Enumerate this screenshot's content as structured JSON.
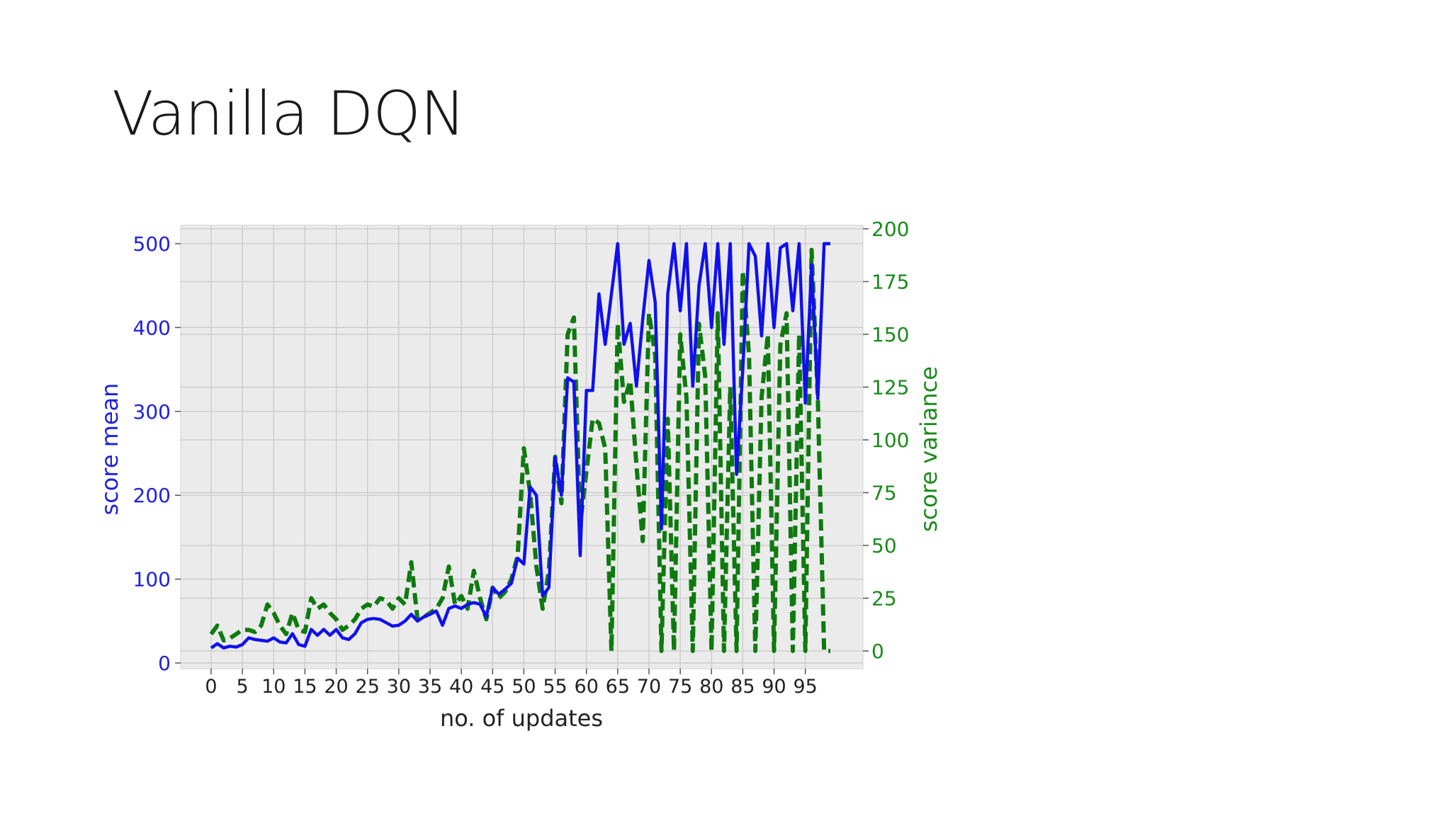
{
  "slide": {
    "title": "Vanilla DQN"
  },
  "colors": {
    "mean": "#1010ee",
    "variance": "#0e7a0e",
    "plot_bg": "#ebebeb",
    "grid": "#c8c8c8"
  },
  "chart_data": {
    "type": "line",
    "xlabel": "no. of updates",
    "ylabel": "score mean",
    "y2label": "score variance",
    "xticks": [
      0,
      5,
      10,
      15,
      20,
      25,
      30,
      35,
      40,
      45,
      50,
      55,
      60,
      65,
      70,
      75,
      80,
      85,
      90,
      95
    ],
    "ylim": [
      0,
      500
    ],
    "yticks": [
      0,
      100,
      200,
      300,
      400,
      500
    ],
    "y2lim": [
      0,
      200
    ],
    "y2ticks": [
      0,
      25,
      50,
      75,
      100,
      125,
      150,
      175,
      200
    ],
    "grid": true,
    "series": [
      {
        "name": "score mean",
        "axis": "left",
        "style": "solid",
        "color": "#1010ee",
        "x": [
          0,
          1,
          2,
          3,
          4,
          5,
          6,
          7,
          8,
          9,
          10,
          11,
          12,
          13,
          14,
          15,
          16,
          17,
          18,
          19,
          20,
          21,
          22,
          23,
          24,
          25,
          26,
          27,
          28,
          29,
          30,
          31,
          32,
          33,
          34,
          35,
          36,
          37,
          38,
          39,
          40,
          41,
          42,
          43,
          44,
          45,
          46,
          47,
          48,
          49,
          50,
          51,
          52,
          53,
          54,
          55,
          56,
          57,
          58,
          59,
          60,
          61,
          62,
          63,
          64,
          65,
          66,
          67,
          68,
          69,
          70,
          71,
          72,
          73,
          74,
          75,
          76,
          77,
          78,
          79,
          80,
          81,
          82,
          83,
          84,
          85,
          86,
          87,
          88,
          89,
          90,
          91,
          92,
          93,
          94,
          95,
          96,
          97,
          98,
          99
        ],
        "y": [
          18,
          23,
          18,
          20,
          19,
          22,
          30,
          28,
          27,
          26,
          30,
          25,
          24,
          35,
          22,
          20,
          40,
          33,
          40,
          33,
          40,
          30,
          28,
          35,
          48,
          52,
          53,
          52,
          48,
          44,
          45,
          50,
          58,
          50,
          55,
          58,
          62,
          45,
          65,
          68,
          65,
          70,
          72,
          70,
          55,
          90,
          82,
          88,
          95,
          125,
          118,
          210,
          200,
          80,
          90,
          245,
          200,
          340,
          335,
          128,
          325,
          325,
          440,
          380,
          440,
          500,
          380,
          405,
          330,
          410,
          480,
          430,
          160,
          440,
          500,
          420,
          500,
          330,
          450,
          500,
          400,
          500,
          380,
          500,
          225,
          350,
          500,
          485,
          390,
          500,
          400,
          495,
          500,
          420,
          500,
          310,
          475,
          315,
          500,
          500
        ]
      },
      {
        "name": "score variance",
        "axis": "right",
        "style": "dashed",
        "color": "#0e7a0e",
        "x": [
          0,
          1,
          2,
          3,
          4,
          5,
          6,
          7,
          8,
          9,
          10,
          11,
          12,
          13,
          14,
          15,
          16,
          17,
          18,
          19,
          20,
          21,
          22,
          23,
          24,
          25,
          26,
          27,
          28,
          29,
          30,
          31,
          32,
          33,
          34,
          35,
          36,
          37,
          38,
          39,
          40,
          41,
          42,
          43,
          44,
          45,
          46,
          47,
          48,
          49,
          50,
          51,
          52,
          53,
          54,
          55,
          56,
          57,
          58,
          59,
          60,
          61,
          62,
          63,
          64,
          65,
          66,
          67,
          68,
          69,
          70,
          71,
          72,
          73,
          74,
          75,
          76,
          77,
          78,
          79,
          80,
          81,
          82,
          83,
          84,
          85,
          86,
          87,
          88,
          89,
          90,
          91,
          92,
          93,
          94,
          95,
          96,
          97,
          98,
          99
        ],
        "y": [
          8,
          12,
          5,
          6,
          8,
          10,
          10,
          9,
          12,
          22,
          18,
          12,
          8,
          18,
          10,
          9,
          25,
          20,
          22,
          18,
          15,
          10,
          12,
          15,
          20,
          22,
          21,
          25,
          24,
          20,
          25,
          22,
          42,
          15,
          16,
          18,
          20,
          25,
          40,
          22,
          26,
          20,
          38,
          25,
          15,
          30,
          25,
          28,
          34,
          45,
          96,
          75,
          40,
          20,
          38,
          92,
          70,
          150,
          158,
          60,
          85,
          110,
          108,
          96,
          0,
          155,
          118,
          128,
          88,
          52,
          160,
          140,
          0,
          110,
          0,
          150,
          120,
          0,
          155,
          130,
          0,
          160,
          0,
          125,
          0,
          180,
          140,
          0,
          120,
          150,
          0,
          145,
          160,
          0,
          150,
          0,
          190,
          120,
          0,
          0
        ]
      }
    ]
  }
}
